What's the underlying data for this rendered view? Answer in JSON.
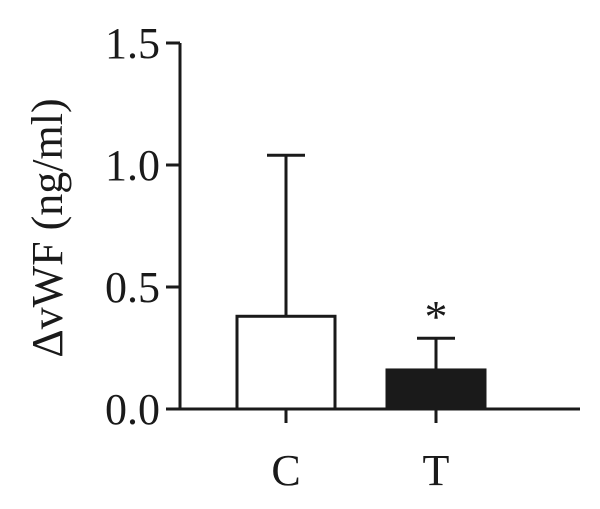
{
  "chart_data": {
    "type": "bar",
    "categories": [
      "C",
      "T"
    ],
    "values": [
      0.38,
      0.16
    ],
    "error_upper": [
      1.04,
      0.29
    ],
    "bar_fills": [
      "#ffffff",
      "#1a1a1a"
    ],
    "ylabel": "ΔvWF (ng/ml)",
    "ylim": [
      0,
      1.5
    ],
    "yticks": [
      0.0,
      0.5,
      1.0,
      1.5
    ],
    "ytick_labels": [
      "0.0",
      "0.5",
      "1.0",
      "1.5"
    ],
    "annotations": [
      {
        "category": "T",
        "text": "*"
      }
    ],
    "grid": false,
    "legend": "none"
  }
}
